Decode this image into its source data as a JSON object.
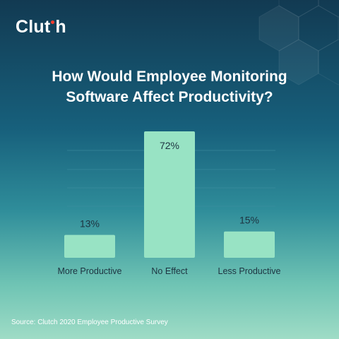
{
  "logo": {
    "text_before": "Clut",
    "text_after": "h",
    "dot_color": "#ff3d2e"
  },
  "title": {
    "line1": "How Would Employee Monitoring",
    "line2": "Software Affect Productivity?"
  },
  "source": "Source: Clutch 2020 Employee Productive Survey",
  "colors": {
    "bar": "#98e3c4",
    "text_dark": "#1d3340",
    "grid": "#3f8fa3"
  },
  "chart_data": {
    "type": "bar",
    "title": "How Would Employee Monitoring Software Affect Productivity?",
    "categories": [
      "More Productive",
      "No Effect",
      "Less Productive"
    ],
    "values": [
      13,
      72,
      15
    ],
    "value_labels": [
      "13%",
      "72%",
      "15%"
    ],
    "unit": "%",
    "ylim": [
      0,
      72
    ],
    "grid": true,
    "legend": "none"
  }
}
